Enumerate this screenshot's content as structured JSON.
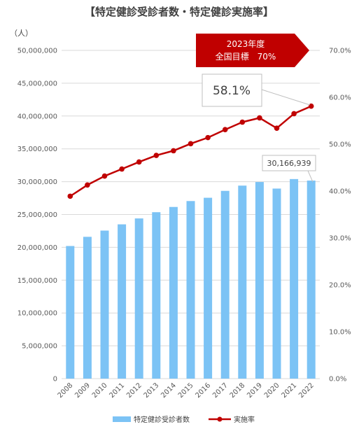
{
  "chart_data": {
    "type": "bar+line",
    "title": "【特定健診受診者数・特定健診実施率】",
    "left_axis_unit": "（人）",
    "categories": [
      "2008",
      "2009",
      "2010",
      "2011",
      "2012",
      "2013",
      "2014",
      "2015",
      "2016",
      "2017",
      "2018",
      "2019",
      "2020",
      "2021",
      "2022"
    ],
    "left_ticks": [
      "0",
      "5,000,000",
      "10,000,000",
      "15,000,000",
      "20,000,000",
      "25,000,000",
      "30,000,000",
      "35,000,000",
      "40,000,000",
      "45,000,000",
      "50,000,000"
    ],
    "right_ticks": [
      "0.0%",
      "10.0%",
      "20.0%",
      "30.0%",
      "40.0%",
      "50.0%",
      "60.0%",
      "70.0%"
    ],
    "ylim_left": [
      0,
      50000000
    ],
    "ylim_right": [
      0,
      70
    ],
    "grid": true,
    "legend_position": "bottom",
    "series": [
      {
        "name": "特定健診受診者数",
        "type": "bar",
        "axis": "left",
        "color": "#7cc3f5",
        "values": [
          20200000,
          21600000,
          22550000,
          23500000,
          24400000,
          25350000,
          26150000,
          27050000,
          27550000,
          28600000,
          29400000,
          29950000,
          28950000,
          30400000,
          30166939
        ]
      },
      {
        "name": "実施率",
        "type": "line",
        "axis": "right",
        "color": "#c00000",
        "values": [
          38.9,
          41.3,
          43.2,
          44.7,
          46.2,
          47.6,
          48.6,
          50.1,
          51.4,
          53.1,
          54.7,
          55.6,
          53.4,
          56.5,
          58.1
        ]
      }
    ],
    "annotations": {
      "last_rate": "58.1%",
      "last_count": "30,166,939",
      "target_line1": "2023年度",
      "target_line2": "全国目標　70%",
      "target_color": "#c00000"
    }
  }
}
